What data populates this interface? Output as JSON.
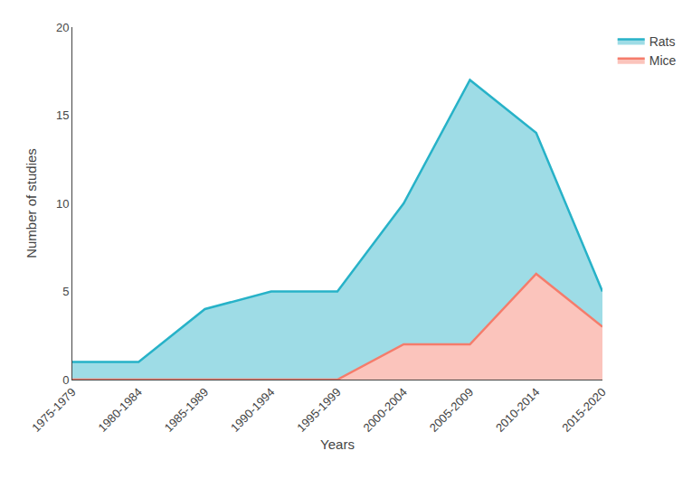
{
  "chart_data": {
    "type": "area",
    "categories": [
      "1975-1979",
      "1980-1984",
      "1985-1989",
      "1990-1994",
      "1995-1999",
      "2000-2004",
      "2005-2009",
      "2010-2014",
      "2015-2020"
    ],
    "series": [
      {
        "name": "Rats",
        "color": "#27B2C8",
        "values": [
          1,
          1,
          4,
          5,
          5,
          10,
          17,
          14,
          5
        ]
      },
      {
        "name": "Mice",
        "color": "#F57C6B",
        "values": [
          0,
          0,
          0,
          0,
          0,
          2,
          2,
          6,
          3
        ]
      }
    ],
    "xlabel": "Years",
    "ylabel": "Number of studies",
    "ylim": [
      0,
      20
    ],
    "yticks": [
      0,
      5,
      10,
      15,
      20
    ],
    "grid": false,
    "legend": "upper right"
  }
}
